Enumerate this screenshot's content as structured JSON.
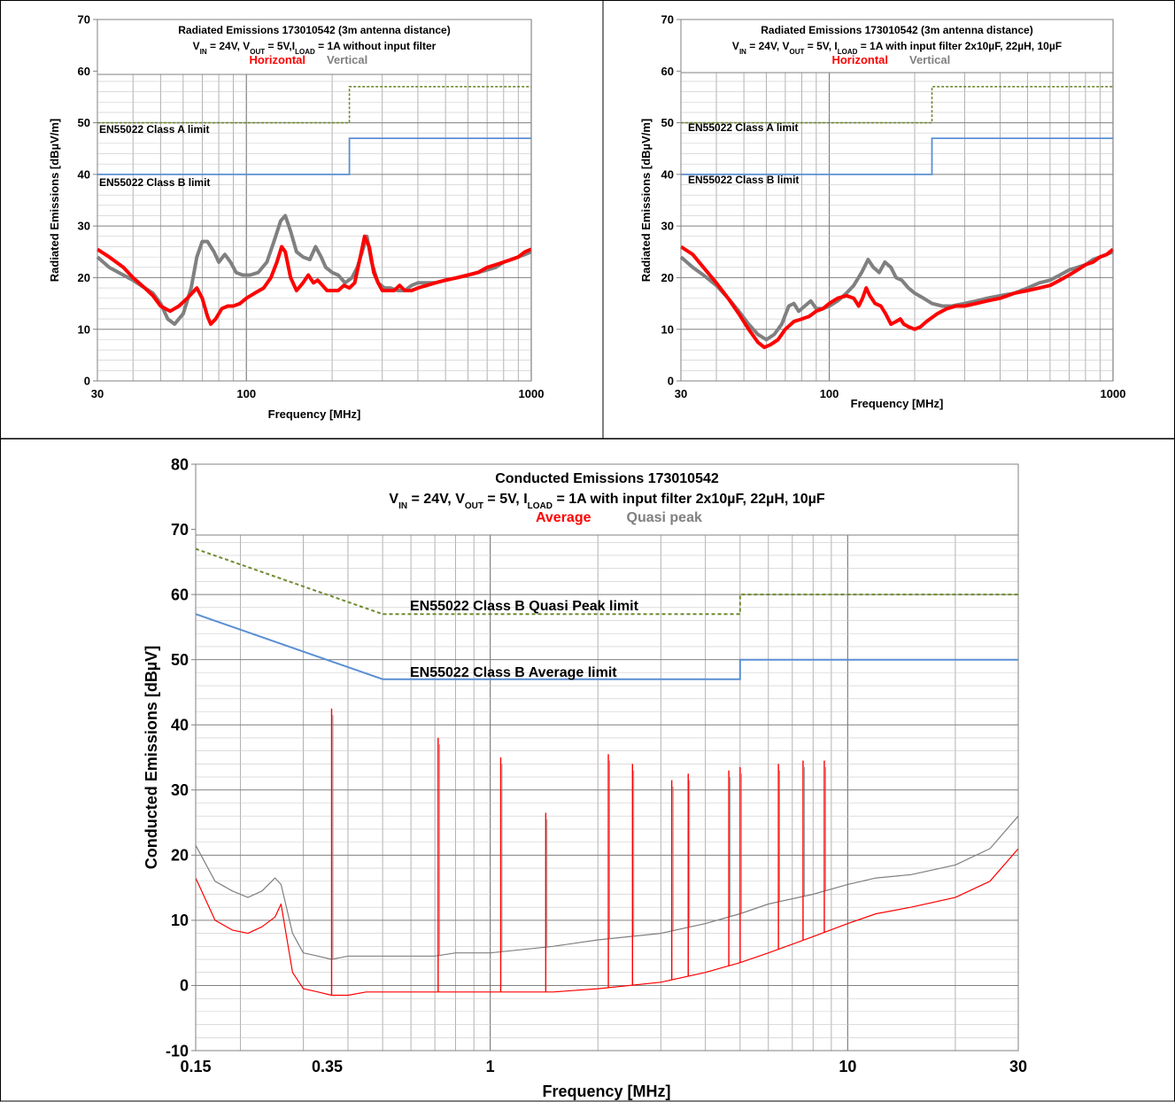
{
  "colors": {
    "horizontal": "#ff0000",
    "vertical": "#808080",
    "average": "#ff0000",
    "quasi_peak": "#808080",
    "limit_a": "#6f8a2e",
    "limit_b": "#5b8fd4",
    "grid": "#a0a0a0",
    "border": "#000000"
  },
  "chart_data": [
    {
      "id": "radiated-no-filter",
      "type": "line",
      "title_line1": "Radiated Emissions 173010542 (3m antenna distance)",
      "title_line2": {
        "V": "V",
        "IN": "IN",
        "eq_in": " = 24V, ",
        "OUT": "OUT",
        "eq_out": " = 5V,",
        "I": "I",
        "LOAD": "LOAD",
        "eq_load": " = 1A without input filter"
      },
      "legend": [
        {
          "label": "Horizontal",
          "color": "#ff0000"
        },
        {
          "label": "Vertical",
          "color": "#808080"
        }
      ],
      "xlabel": "Frequency [MHz]",
      "ylabel": "Radiated Emissions [dBµV/m]",
      "xscale": "log",
      "xlim": [
        30,
        1000
      ],
      "ylim": [
        0,
        70
      ],
      "xticks": [
        30,
        100,
        1000
      ],
      "yticks": [
        0,
        10,
        20,
        30,
        40,
        50,
        60,
        70
      ],
      "grid": true,
      "limit_labels": {
        "a": "EN55022 Class A limit",
        "b": "EN55022 Class B limit"
      },
      "limit_a": {
        "x": [
          30,
          230,
          230,
          1000
        ],
        "y": [
          50,
          50,
          57,
          57
        ]
      },
      "limit_b": {
        "x": [
          30,
          230,
          230,
          1000
        ],
        "y": [
          40,
          40,
          47,
          47
        ]
      },
      "series": [
        {
          "name": "Vertical",
          "x": [
            30,
            33,
            37,
            40,
            44,
            47,
            50,
            53,
            56,
            60,
            64,
            67,
            70,
            73,
            77,
            80,
            84,
            88,
            92,
            97,
            103,
            110,
            118,
            125,
            132,
            137,
            143,
            150,
            158,
            167,
            175,
            183,
            190,
            200,
            210,
            222,
            235,
            245,
            255,
            265,
            275,
            290,
            305,
            320,
            340,
            360,
            380,
            400,
            430,
            460,
            500,
            550,
            600,
            650,
            700,
            750,
            800,
            850,
            900,
            950,
            1000
          ],
          "y": [
            24,
            22,
            20.5,
            19.5,
            18,
            17,
            15,
            12,
            11,
            13,
            18,
            24,
            27,
            27,
            25,
            23,
            24.5,
            23,
            21,
            20.5,
            20.5,
            21,
            23,
            27,
            31,
            32,
            29,
            25,
            24,
            23.5,
            26,
            24,
            22,
            21,
            20.5,
            19,
            20,
            22,
            25,
            28,
            23,
            19,
            18,
            18,
            17.5,
            17.5,
            18.5,
            19,
            19,
            19,
            19.5,
            20,
            20.5,
            21,
            21.5,
            22,
            23,
            23.5,
            24,
            24.5,
            25
          ]
        },
        {
          "name": "Horizontal",
          "x": [
            30,
            33,
            37,
            40,
            44,
            47,
            50,
            54,
            58,
            62,
            67,
            70,
            73,
            75,
            78,
            82,
            86,
            90,
            95,
            100,
            107,
            115,
            122,
            128,
            133,
            137,
            143,
            150,
            158,
            165,
            172,
            178,
            185,
            192,
            200,
            210,
            220,
            230,
            240,
            250,
            260,
            270,
            280,
            290,
            300,
            315,
            330,
            345,
            360,
            380,
            400,
            430,
            460,
            500,
            550,
            600,
            650,
            700,
            750,
            800,
            850,
            900,
            950,
            1000
          ],
          "y": [
            25.5,
            24,
            22,
            20,
            18,
            16.5,
            14.5,
            13.5,
            14.5,
            16,
            18,
            16,
            12.5,
            11,
            12,
            14,
            14.5,
            14.5,
            15,
            16,
            17,
            18,
            20,
            23,
            26,
            25,
            20,
            17.5,
            19,
            20.5,
            19,
            19.5,
            18.5,
            17.5,
            17.5,
            17.5,
            18.5,
            18,
            19,
            23.5,
            28,
            26,
            21,
            19,
            17.5,
            17.5,
            17.5,
            18.5,
            17.5,
            17.5,
            18,
            18.5,
            19,
            19.5,
            20,
            20.5,
            21,
            22,
            22.5,
            23,
            23.5,
            24,
            25,
            25.5
          ]
        }
      ]
    },
    {
      "id": "radiated-with-filter",
      "type": "line",
      "title_line1": "Radiated Emissions 173010542 (3m antenna distance)",
      "title_line2": {
        "V": "V",
        "IN": "IN",
        "eq_in": " = 24V, ",
        "OUT": "OUT",
        "eq_out": " = 5V, ",
        "I": "I",
        "LOAD": "LOAD",
        "eq_load": " = 1A with input filter 2x10µF, 22µH, 10µF"
      },
      "legend": [
        {
          "label": "Horizontal",
          "color": "#ff0000"
        },
        {
          "label": "Vertical",
          "color": "#808080"
        }
      ],
      "xlabel": "Frequency [MHz]",
      "ylabel": "Radiated Emissions [dBµV/m]",
      "xscale": "log",
      "xlim": [
        30,
        1000
      ],
      "ylim": [
        0,
        70
      ],
      "xticks": [
        30,
        100,
        1000
      ],
      "yticks": [
        0,
        10,
        20,
        30,
        40,
        50,
        60,
        70
      ],
      "grid": true,
      "limit_labels": {
        "a": "EN55022 Class A limit",
        "b": "EN55022 Class B limit"
      },
      "limit_a": {
        "x": [
          30,
          230,
          230,
          1000
        ],
        "y": [
          50,
          50,
          57,
          57
        ]
      },
      "limit_b": {
        "x": [
          30,
          230,
          230,
          1000
        ],
        "y": [
          40,
          40,
          47,
          47
        ]
      },
      "series": [
        {
          "name": "Vertical",
          "x": [
            30,
            33,
            36,
            40,
            44,
            48,
            52,
            56,
            60,
            64,
            68,
            72,
            75,
            78,
            82,
            86,
            90,
            95,
            100,
            107,
            115,
            122,
            130,
            137,
            143,
            150,
            157,
            165,
            172,
            180,
            190,
            200,
            215,
            230,
            250,
            270,
            300,
            330,
            360,
            400,
            450,
            500,
            550,
            600,
            650,
            700,
            750,
            800,
            850,
            900,
            950,
            1000
          ],
          "y": [
            24,
            22,
            20.5,
            18.5,
            16,
            13.5,
            11,
            9,
            8,
            9,
            11,
            14.5,
            15,
            13.5,
            14.5,
            15.5,
            14,
            14,
            14.5,
            15.5,
            17,
            18.5,
            21,
            23.5,
            22,
            21,
            23,
            22,
            20,
            19.5,
            18,
            17,
            16,
            15,
            14.5,
            14.5,
            15,
            15.5,
            16,
            16.5,
            17,
            18,
            19,
            19.5,
            20.5,
            21.5,
            22,
            22.5,
            23.5,
            24,
            24.5,
            25
          ]
        },
        {
          "name": "Horizontal",
          "x": [
            30,
            33,
            36,
            40,
            44,
            48,
            52,
            56,
            59,
            62,
            66,
            70,
            75,
            80,
            85,
            90,
            95,
            100,
            107,
            115,
            122,
            127,
            131,
            135,
            139,
            145,
            152,
            158,
            165,
            172,
            178,
            183,
            190,
            200,
            210,
            220,
            240,
            260,
            280,
            300,
            330,
            360,
            400,
            450,
            500,
            550,
            600,
            650,
            700,
            750,
            800,
            850,
            900,
            950,
            1000
          ],
          "y": [
            26,
            24.5,
            22,
            19,
            16,
            13,
            10,
            7.5,
            6.5,
            7,
            8,
            10,
            11.5,
            12,
            12.5,
            13.5,
            14,
            15,
            16,
            16.5,
            16,
            14.5,
            16,
            18,
            16.5,
            15,
            14.5,
            13,
            11,
            11.5,
            12,
            11,
            10.5,
            10,
            10.5,
            11.5,
            13,
            14,
            14.5,
            14.5,
            15,
            15.5,
            16,
            17,
            17.5,
            18,
            18.5,
            19.5,
            20.5,
            21.5,
            22.5,
            23,
            24,
            24.5,
            25.5
          ]
        }
      ]
    },
    {
      "id": "conducted",
      "type": "line",
      "title_line1": "Conducted Emissions 173010542",
      "title_line2": {
        "V": "V",
        "IN": "IN",
        "eq_in": " = 24V, ",
        "OUT": "OUT",
        "eq_out": " = 5V, ",
        "I": "I",
        "LOAD": "LOAD",
        "eq_load": " = 1A with input filter 2x10µF, 22µH, 10µF"
      },
      "legend": [
        {
          "label": "Average",
          "color": "#ff0000"
        },
        {
          "label": "Quasi peak",
          "color": "#808080"
        }
      ],
      "xlabel": "Frequency [MHz]",
      "ylabel": "Conducted Emissions [dBµV]",
      "xscale": "log",
      "xlim": [
        0.15,
        30
      ],
      "ylim": [
        -10,
        80
      ],
      "xticks": [
        0.15,
        0.35,
        1,
        10,
        30
      ],
      "yticks": [
        -10,
        0,
        10,
        20,
        30,
        40,
        50,
        60,
        70,
        80
      ],
      "grid": true,
      "limit_labels": {
        "qp": "EN55022 Class B Quasi Peak limit",
        "avg": "EN55022 Class B Average limit"
      },
      "limit_qp": {
        "x": [
          0.15,
          0.5,
          5,
          5,
          30
        ],
        "y": [
          67,
          57,
          57,
          60,
          60
        ]
      },
      "limit_avg": {
        "x": [
          0.15,
          0.5,
          5,
          5,
          30
        ],
        "y": [
          57,
          47,
          47,
          50,
          50
        ]
      },
      "spikes": [
        {
          "f": 0.36,
          "avg": 42.5
        },
        {
          "f": 0.715,
          "avg": 38
        },
        {
          "f": 1.07,
          "avg": 35
        },
        {
          "f": 1.43,
          "avg": 26.5
        },
        {
          "f": 2.14,
          "avg": 35.5
        },
        {
          "f": 2.5,
          "avg": 34
        },
        {
          "f": 3.22,
          "avg": 31.5
        },
        {
          "f": 3.58,
          "avg": 32.5
        },
        {
          "f": 4.65,
          "avg": 33
        },
        {
          "f": 5.0,
          "avg": 33.5
        },
        {
          "f": 6.4,
          "avg": 34
        },
        {
          "f": 7.5,
          "avg": 34.5
        },
        {
          "f": 8.6,
          "avg": 34.5
        }
      ],
      "series": [
        {
          "name": "Quasi peak",
          "x": [
            0.15,
            0.17,
            0.19,
            0.21,
            0.23,
            0.25,
            0.26,
            0.28,
            0.3,
            0.33,
            0.36,
            0.4,
            0.45,
            0.5,
            0.6,
            0.7,
            0.8,
            1,
            1.5,
            2,
            3,
            4,
            5,
            6,
            8,
            10,
            12,
            15,
            20,
            25,
            30
          ],
          "y": [
            21.5,
            16,
            14.5,
            13.5,
            14.5,
            16.5,
            15.5,
            8,
            5,
            4.5,
            4,
            4.5,
            4.5,
            4.5,
            4.5,
            4.5,
            5,
            5,
            6,
            7,
            8,
            9.5,
            11,
            12.5,
            14,
            15.5,
            16.5,
            17,
            18.5,
            21,
            26
          ]
        },
        {
          "name": "Average",
          "x": [
            0.15,
            0.17,
            0.19,
            0.21,
            0.23,
            0.25,
            0.26,
            0.28,
            0.3,
            0.33,
            0.36,
            0.4,
            0.45,
            0.5,
            0.6,
            0.7,
            0.8,
            1,
            1.5,
            2,
            3,
            4,
            5,
            6,
            8,
            10,
            12,
            15,
            20,
            25,
            30
          ],
          "y": [
            16.5,
            10,
            8.5,
            8,
            9,
            10.5,
            12.5,
            2,
            -0.5,
            -1,
            -1.5,
            -1.5,
            -1,
            -1,
            -1,
            -1,
            -1,
            -1,
            -1,
            -0.5,
            0.5,
            2,
            3.5,
            5,
            7.5,
            9.5,
            11,
            12,
            13.5,
            16,
            21
          ]
        }
      ]
    }
  ]
}
